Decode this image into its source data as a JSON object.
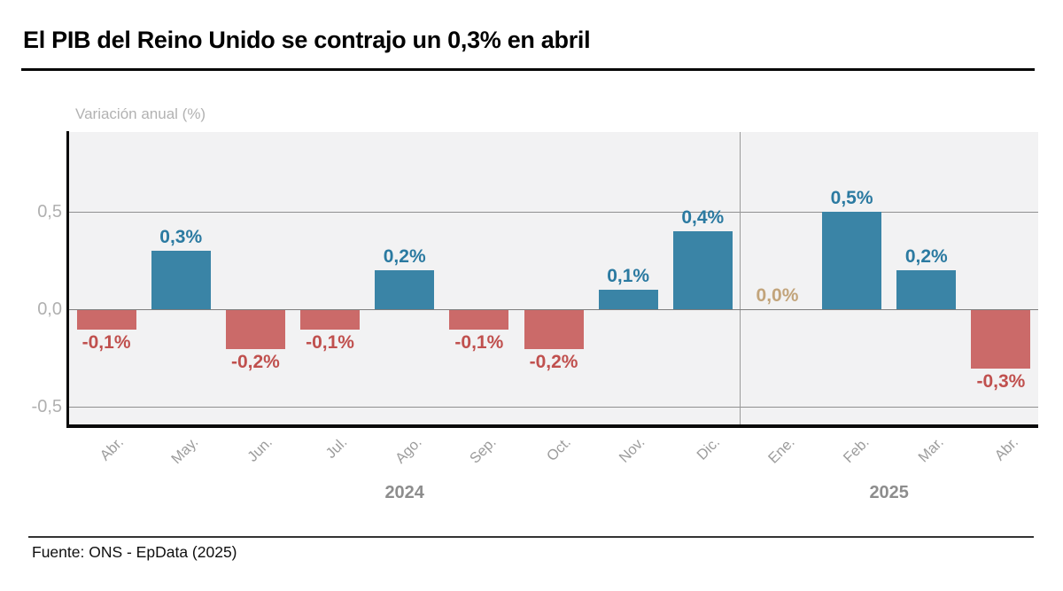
{
  "footer": {
    "source": "Fuente: ONS - EpData (2025)"
  },
  "chart_data": {
    "type": "bar",
    "title": "El PIB del Reino Unido se contrajo un 0,3% en abril",
    "ylabel": "Variación anual (%)",
    "xlabel": "",
    "categories": [
      "Abr.",
      "May.",
      "Jun.",
      "Jul.",
      "Ago.",
      "Sep.",
      "Oct.",
      "Nov.",
      "Dic.",
      "Ene.",
      "Feb.",
      "Mar.",
      "Abr."
    ],
    "values": [
      -0.1,
      0.3,
      -0.2,
      -0.1,
      0.2,
      -0.1,
      -0.2,
      0.1,
      0.4,
      0.0,
      0.5,
      0.2,
      -0.3
    ],
    "value_labels": [
      "-0,1%",
      "0,3%",
      "-0,2%",
      "-0,1%",
      "0,2%",
      "-0,1%",
      "-0,2%",
      "0,1%",
      "0,4%",
      "0,0%",
      "0,5%",
      "0,2%",
      "-0,3%"
    ],
    "year_groups": [
      {
        "label": "2024",
        "start": 0,
        "end": 8
      },
      {
        "label": "2025",
        "start": 9,
        "end": 12
      }
    ],
    "y_ticks": [
      {
        "value": 0.5,
        "label": "0,5"
      },
      {
        "value": 0.0,
        "label": "0,0"
      },
      {
        "value": -0.5,
        "label": "-0,5"
      }
    ],
    "ylim": [
      -0.6,
      0.9
    ],
    "grid": "horizontal",
    "legend": "none",
    "colors": {
      "positive_bar": "#3a84a6",
      "negative_bar": "#cb6a69",
      "positive_label": "#2b7aa1",
      "negative_label": "#c0504e",
      "zero_label": "#c2a47b"
    }
  }
}
